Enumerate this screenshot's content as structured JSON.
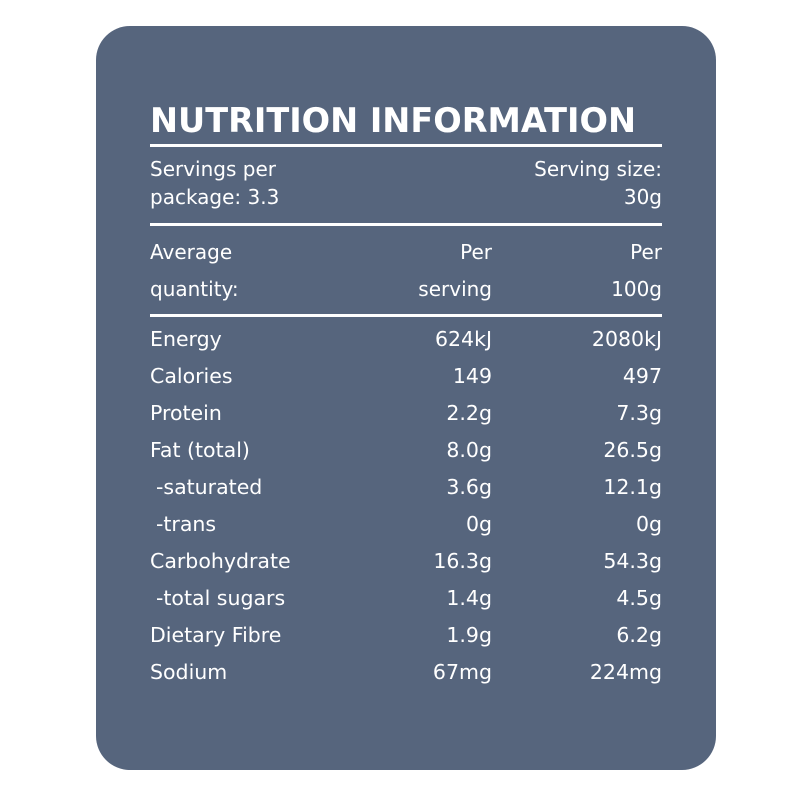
{
  "title": "NUTRITION INFORMATION",
  "servings": {
    "per_package_line1": "Servings per",
    "per_package_line2": "package: 3.3",
    "size_line1": "Serving size:",
    "size_line2": "30g"
  },
  "header": {
    "name_line1": "Average",
    "name_line2": "quantity:",
    "col_a_line1": "Per",
    "col_a_line2": "serving",
    "col_b_line1": "Per",
    "col_b_line2": "100g"
  },
  "rows": [
    {
      "name": "Energy",
      "per_serving": "624kJ",
      "per_100g": "2080kJ",
      "indent": false
    },
    {
      "name": "Calories",
      "per_serving": "149",
      "per_100g": "497",
      "indent": false
    },
    {
      "name": "Protein",
      "per_serving": "2.2g",
      "per_100g": "7.3g",
      "indent": false
    },
    {
      "name": "Fat (total)",
      "per_serving": "8.0g",
      "per_100g": "26.5g",
      "indent": false
    },
    {
      "name": "-saturated",
      "per_serving": "3.6g",
      "per_100g": "12.1g",
      "indent": true
    },
    {
      "name": "-trans",
      "per_serving": "0g",
      "per_100g": "0g",
      "indent": true
    },
    {
      "name": "Carbohydrate",
      "per_serving": "16.3g",
      "per_100g": "54.3g",
      "indent": false
    },
    {
      "name": "-total sugars",
      "per_serving": "1.4g",
      "per_100g": "4.5g",
      "indent": true
    },
    {
      "name": "Dietary Fibre",
      "per_serving": "1.9g",
      "per_100g": "6.2g",
      "indent": false
    },
    {
      "name": "Sodium",
      "per_serving": "67mg",
      "per_100g": "224mg",
      "indent": false
    }
  ],
  "colors": {
    "panel": "#56657d",
    "text": "#ffffff"
  }
}
